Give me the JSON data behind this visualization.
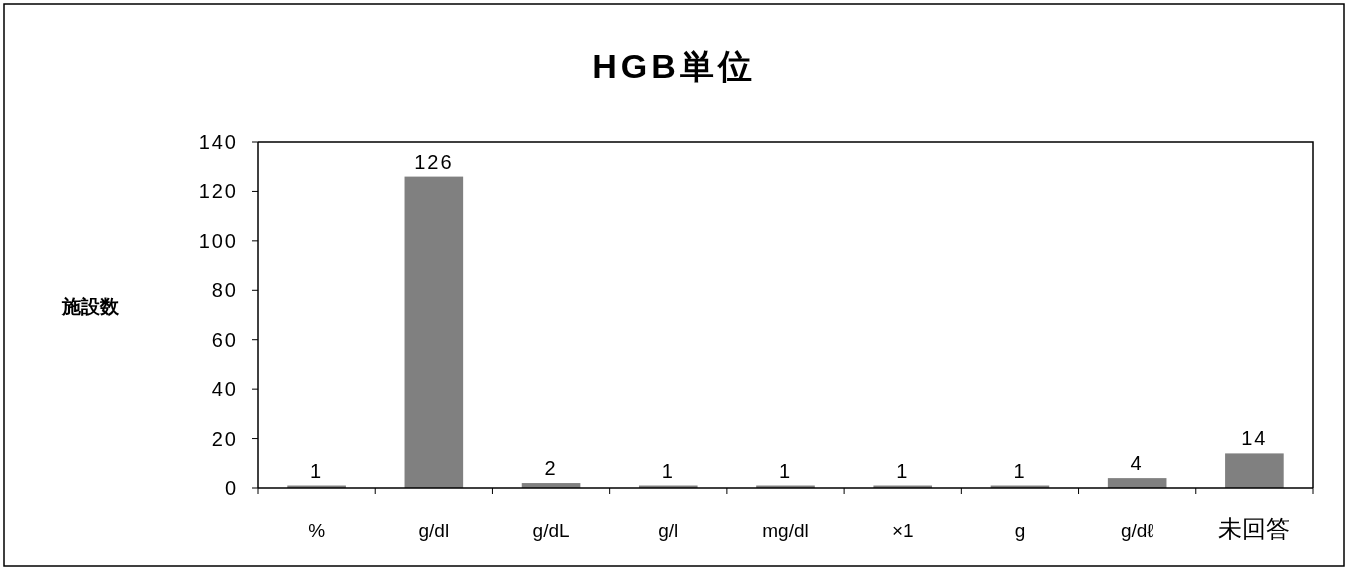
{
  "chart_data": {
    "type": "bar",
    "title": "HGB単位",
    "ylabel": "施設数",
    "categories": [
      "%",
      "g/dl",
      "g/dL",
      "g/l",
      "mg/dl",
      "×1",
      "g",
      "g/dℓ",
      "未回答"
    ],
    "values": [
      1,
      126,
      2,
      1,
      1,
      1,
      1,
      4,
      14
    ],
    "color": "#808080",
    "ylim": [
      0,
      140
    ],
    "yticks": [
      0,
      20,
      40,
      60,
      80,
      100,
      120,
      140
    ],
    "data_labels": true
  }
}
